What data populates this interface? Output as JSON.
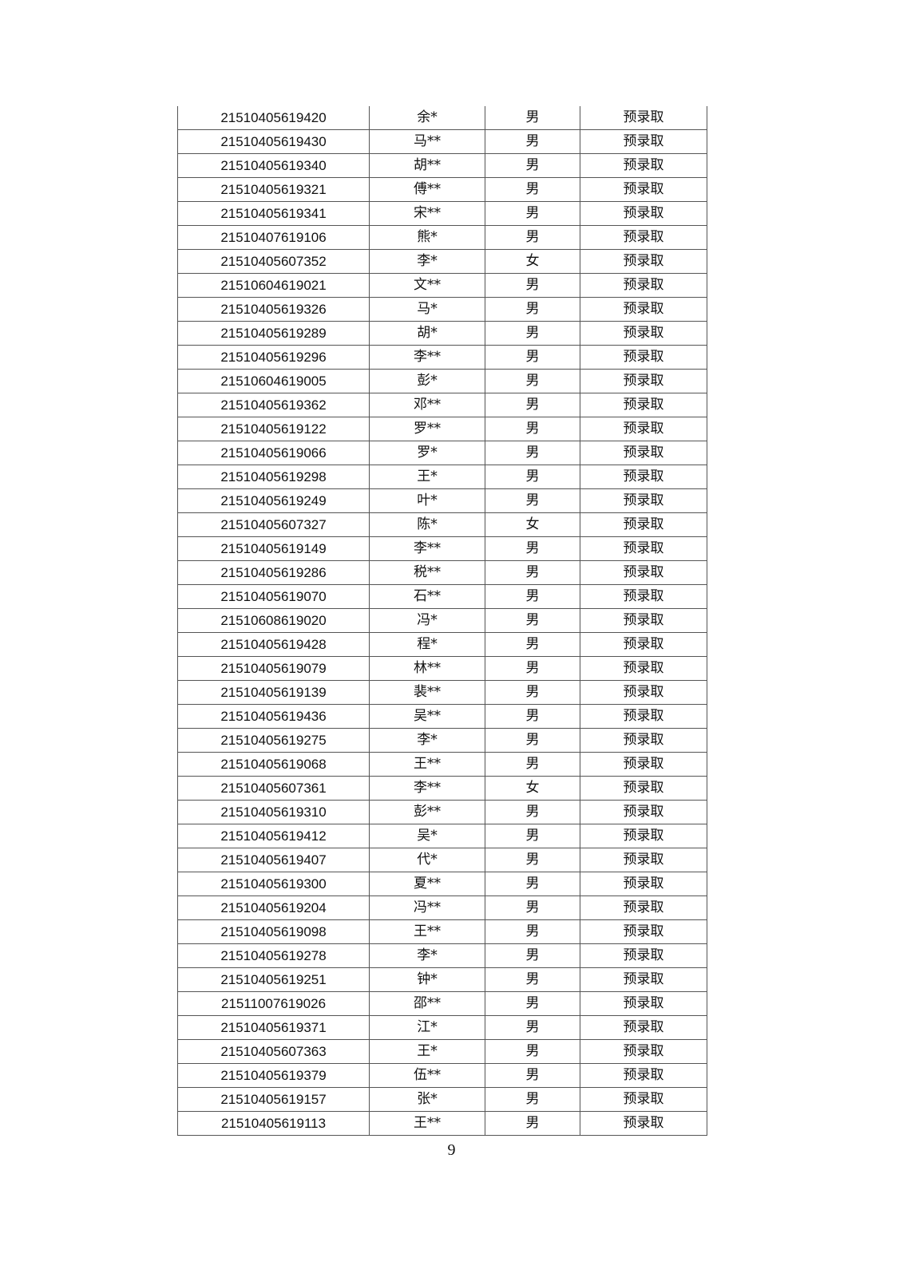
{
  "table": {
    "rows": [
      [
        "21510405619420",
        "余*",
        "男",
        "预录取"
      ],
      [
        "21510405619430",
        "马**",
        "男",
        "预录取"
      ],
      [
        "21510405619340",
        "胡**",
        "男",
        "预录取"
      ],
      [
        "21510405619321",
        "傅**",
        "男",
        "预录取"
      ],
      [
        "21510405619341",
        "宋**",
        "男",
        "预录取"
      ],
      [
        "21510407619106",
        "熊*",
        "男",
        "预录取"
      ],
      [
        "21510405607352",
        "李*",
        "女",
        "预录取"
      ],
      [
        "21510604619021",
        "文**",
        "男",
        "预录取"
      ],
      [
        "21510405619326",
        "马*",
        "男",
        "预录取"
      ],
      [
        "21510405619289",
        "胡*",
        "男",
        "预录取"
      ],
      [
        "21510405619296",
        "李**",
        "男",
        "预录取"
      ],
      [
        "21510604619005",
        "彭*",
        "男",
        "预录取"
      ],
      [
        "21510405619362",
        "邓**",
        "男",
        "预录取"
      ],
      [
        "21510405619122",
        "罗**",
        "男",
        "预录取"
      ],
      [
        "21510405619066",
        "罗*",
        "男",
        "预录取"
      ],
      [
        "21510405619298",
        "王*",
        "男",
        "预录取"
      ],
      [
        "21510405619249",
        "叶*",
        "男",
        "预录取"
      ],
      [
        "21510405607327",
        "陈*",
        "女",
        "预录取"
      ],
      [
        "21510405619149",
        "李**",
        "男",
        "预录取"
      ],
      [
        "21510405619286",
        "税**",
        "男",
        "预录取"
      ],
      [
        "21510405619070",
        "石**",
        "男",
        "预录取"
      ],
      [
        "21510608619020",
        "冯*",
        "男",
        "预录取"
      ],
      [
        "21510405619428",
        "程*",
        "男",
        "预录取"
      ],
      [
        "21510405619079",
        "林**",
        "男",
        "预录取"
      ],
      [
        "21510405619139",
        "裴**",
        "男",
        "预录取"
      ],
      [
        "21510405619436",
        "吴**",
        "男",
        "预录取"
      ],
      [
        "21510405619275",
        "李*",
        "男",
        "预录取"
      ],
      [
        "21510405619068",
        "王**",
        "男",
        "预录取"
      ],
      [
        "21510405607361",
        "李**",
        "女",
        "预录取"
      ],
      [
        "21510405619310",
        "彭**",
        "男",
        "预录取"
      ],
      [
        "21510405619412",
        "吴*",
        "男",
        "预录取"
      ],
      [
        "21510405619407",
        "代*",
        "男",
        "预录取"
      ],
      [
        "21510405619300",
        "夏**",
        "男",
        "预录取"
      ],
      [
        "21510405619204",
        "冯**",
        "男",
        "预录取"
      ],
      [
        "21510405619098",
        "王**",
        "男",
        "预录取"
      ],
      [
        "21510405619278",
        "李*",
        "男",
        "预录取"
      ],
      [
        "21510405619251",
        "钟*",
        "男",
        "预录取"
      ],
      [
        "21511007619026",
        "邵**",
        "男",
        "预录取"
      ],
      [
        "21510405619371",
        "江*",
        "男",
        "预录取"
      ],
      [
        "21510405607363",
        "王*",
        "男",
        "预录取"
      ],
      [
        "21510405619379",
        "伍**",
        "男",
        "预录取"
      ],
      [
        "21510405619157",
        "张*",
        "男",
        "预录取"
      ],
      [
        "21510405619113",
        "王**",
        "男",
        "预录取"
      ]
    ]
  },
  "page_number": "9"
}
